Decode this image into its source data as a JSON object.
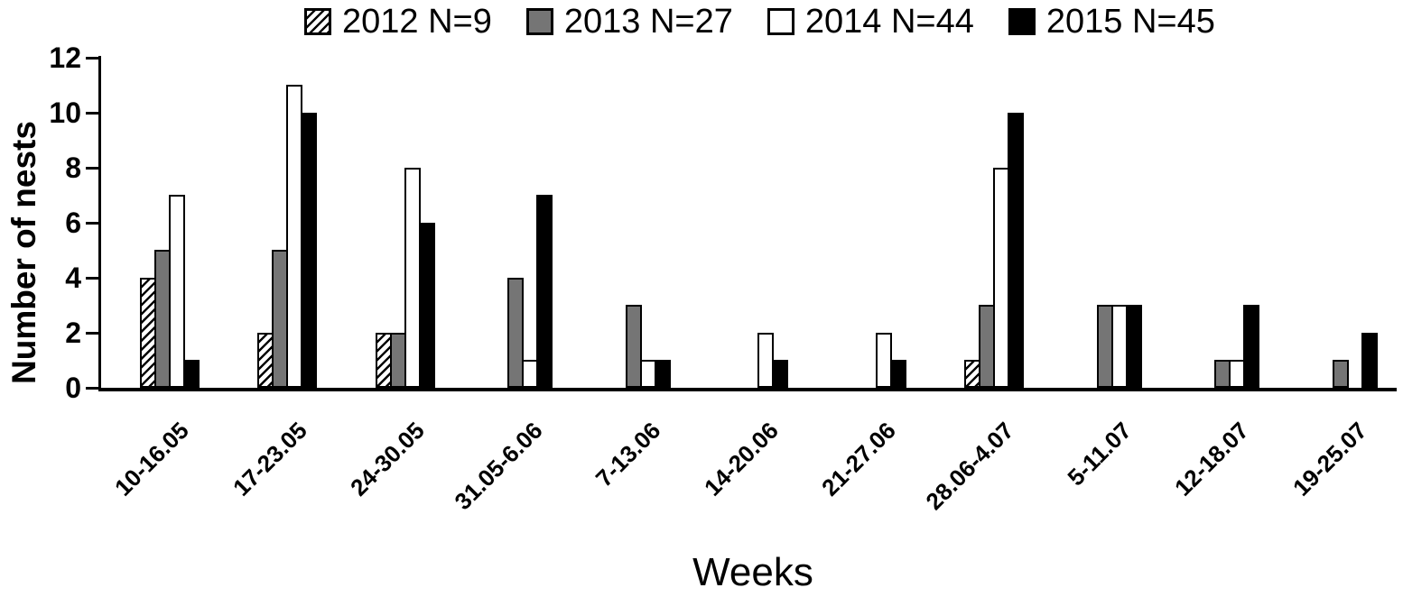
{
  "figure": {
    "background": "#ffffff",
    "axis_color": "#000000"
  },
  "chart_data": {
    "type": "bar",
    "title": "",
    "xlabel": "Weeks",
    "ylabel": "Number of nests",
    "ylim": [
      0,
      12
    ],
    "yticks": [
      0,
      2,
      4,
      6,
      8,
      10,
      12
    ],
    "grid": false,
    "legend_position": "top-center",
    "categories": [
      "10-16.05",
      "17-23.05",
      "24-30.05",
      "31.05-6.06",
      "7-13.06",
      "14-20.06",
      "21-27.06",
      "28.06-4.07",
      "5-11.07",
      "12-18.07",
      "19-25.07"
    ],
    "series": [
      {
        "name": "2012",
        "legend_label": "2012 N=9",
        "n": 9,
        "fill": "hatch",
        "color": "#ffffff",
        "values": [
          4,
          2,
          2,
          0,
          0,
          0,
          0,
          1,
          0,
          0,
          0
        ]
      },
      {
        "name": "2013",
        "legend_label": "2013 N=27",
        "n": 27,
        "fill": "solid",
        "color": "#757575",
        "values": [
          5,
          5,
          2,
          4,
          3,
          0,
          0,
          3,
          3,
          1,
          1
        ]
      },
      {
        "name": "2014",
        "legend_label": "2014 N=44",
        "n": 44,
        "fill": "solid",
        "color": "#ffffff",
        "values": [
          7,
          11,
          8,
          1,
          1,
          2,
          2,
          8,
          3,
          1,
          0
        ]
      },
      {
        "name": "2015",
        "legend_label": "2015 N=45",
        "n": 45,
        "fill": "solid",
        "color": "#000000",
        "values": [
          1,
          10,
          6,
          7,
          1,
          1,
          1,
          10,
          3,
          3,
          2
        ]
      }
    ]
  }
}
